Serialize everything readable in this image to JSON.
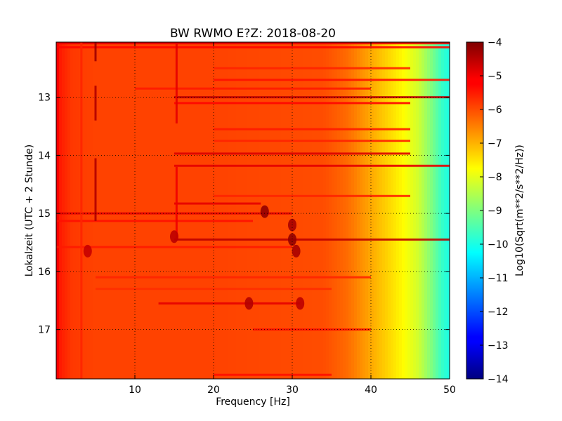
{
  "chart_data": {
    "type": "heatmap",
    "title": "BW RWMO E?Z: 2018-08-20",
    "xlabel": "Frequency [Hz]",
    "ylabel": "Lokalzeit (UTC + 2 Stunde)",
    "colorbar_label": "Log10(Sqrt(m**2/s**2/Hz))",
    "colormap": "jet",
    "xlim": [
      0,
      50
    ],
    "ylim": [
      17.85,
      12.05
    ],
    "y_inverted": true,
    "x_ticks": [
      10,
      20,
      30,
      40,
      50
    ],
    "x_tick_labels": [
      "10",
      "20",
      "30",
      "40",
      "50"
    ],
    "y_ticks": [
      13,
      14,
      15,
      16,
      17
    ],
    "y_tick_labels": [
      "13",
      "14",
      "15",
      "16",
      "17"
    ],
    "clim": [
      -14,
      -4
    ],
    "colorbar_ticks": [
      -4,
      -5,
      -6,
      -7,
      -8,
      -9,
      -10,
      -11,
      -12,
      -13,
      -14
    ],
    "colorbar_tick_labels": [
      "−4",
      "−5",
      "−6",
      "−7",
      "−8",
      "−9",
      "−10",
      "−11",
      "−12",
      "−13",
      "−14"
    ],
    "grid": "dotted",
    "background_profile": {
      "frequency_hz": [
        0,
        0.5,
        2,
        5,
        20,
        34,
        37,
        40,
        42,
        44,
        46,
        47.5,
        49,
        50
      ],
      "log10_amplitude": [
        -5.1,
        -5.5,
        -5.8,
        -5.9,
        -5.9,
        -6.0,
        -6.3,
        -6.9,
        -7.3,
        -7.7,
        -8.2,
        -8.9,
        -9.7,
        -10.0
      ]
    },
    "horizontal_lines": [
      {
        "time": 12.07,
        "f0": 0,
        "f1": 50,
        "value": -5.0
      },
      {
        "time": 12.14,
        "f0": 0,
        "f1": 50,
        "value": -5.3
      },
      {
        "time": 12.5,
        "f0": 20,
        "f1": 45,
        "value": -5.6
      },
      {
        "time": 12.7,
        "f0": 20,
        "f1": 50,
        "value": -5.4
      },
      {
        "time": 12.85,
        "f0": 10,
        "f1": 40,
        "value": -5.5
      },
      {
        "time": 13.0,
        "f0": 15,
        "f1": 50,
        "value": -4.6
      },
      {
        "time": 13.1,
        "f0": 15,
        "f1": 45,
        "value": -5.3
      },
      {
        "time": 13.55,
        "f0": 20,
        "f1": 45,
        "value": -5.5
      },
      {
        "time": 13.75,
        "f0": 20,
        "f1": 45,
        "value": -5.6
      },
      {
        "time": 13.97,
        "f0": 15,
        "f1": 45,
        "value": -4.9
      },
      {
        "time": 14.18,
        "f0": 15,
        "f1": 50,
        "value": -5.0
      },
      {
        "time": 14.7,
        "f0": 20,
        "f1": 45,
        "value": -5.6
      },
      {
        "time": 14.83,
        "f0": 15,
        "f1": 26,
        "value": -5.0
      },
      {
        "time": 15.0,
        "f0": 0,
        "f1": 30,
        "value": -5.0
      },
      {
        "time": 15.13,
        "f0": 0,
        "f1": 25,
        "value": -5.4
      },
      {
        "time": 15.45,
        "f0": 15,
        "f1": 50,
        "value": -4.6
      },
      {
        "time": 15.58,
        "f0": 0,
        "f1": 30,
        "value": -5.5
      },
      {
        "time": 16.1,
        "f0": 5,
        "f1": 40,
        "value": -5.6
      },
      {
        "time": 16.3,
        "f0": 5,
        "f1": 35,
        "value": -5.7
      },
      {
        "time": 16.55,
        "f0": 13,
        "f1": 31,
        "value": -5.0
      },
      {
        "time": 17.0,
        "f0": 25,
        "f1": 40,
        "value": -5.4
      },
      {
        "time": 17.78,
        "f0": 20,
        "f1": 35,
        "value": -5.4
      }
    ],
    "vertical_lines": [
      {
        "freq": 5.0,
        "t0": 12.05,
        "t1": 12.38,
        "value": -4.3
      },
      {
        "freq": 5.0,
        "t0": 12.8,
        "t1": 13.4,
        "value": -4.5
      },
      {
        "freq": 5.0,
        "t0": 14.05,
        "t1": 15.13,
        "value": -4.5
      },
      {
        "freq": 15.3,
        "t0": 12.05,
        "t1": 13.45,
        "value": -5.0
      },
      {
        "freq": 15.3,
        "t0": 14.2,
        "t1": 15.45,
        "value": -5.1
      },
      {
        "freq": 3.2,
        "t0": 12.05,
        "t1": 17.85,
        "value": -5.6
      }
    ],
    "blobs": [
      {
        "freq": 26.5,
        "time": 14.97,
        "value": -4.2
      },
      {
        "freq": 30.0,
        "time": 15.2,
        "value": -4.4
      },
      {
        "freq": 30.0,
        "time": 15.45,
        "value": -4.2
      },
      {
        "freq": 30.5,
        "time": 15.65,
        "value": -4.4
      },
      {
        "freq": 24.5,
        "time": 16.55,
        "value": -4.5
      },
      {
        "freq": 31.0,
        "time": 16.55,
        "value": -4.6
      },
      {
        "freq": 4.0,
        "time": 15.65,
        "value": -4.7
      },
      {
        "freq": 15.0,
        "time": 15.4,
        "value": -4.6
      }
    ]
  }
}
